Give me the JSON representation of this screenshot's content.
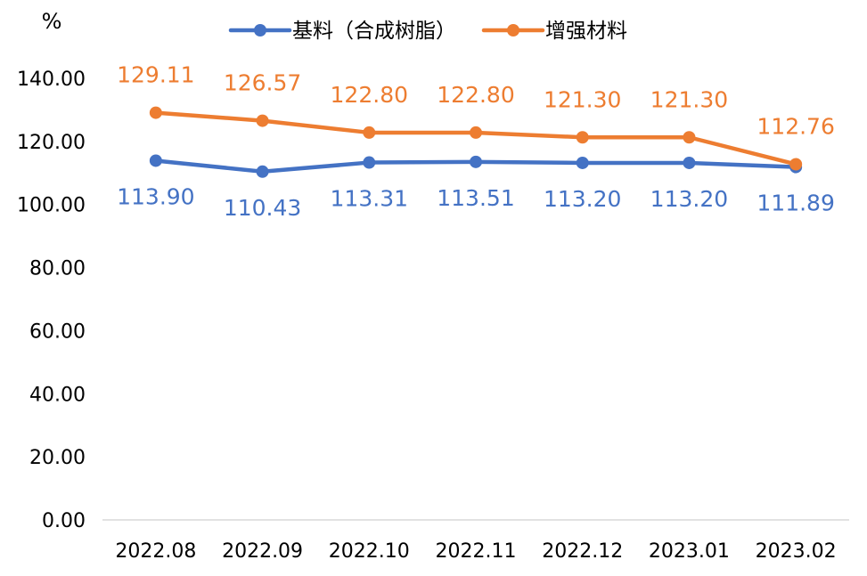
{
  "chart_data": {
    "type": "line",
    "ylabel": "%",
    "ylim": [
      0,
      140
    ],
    "y_ticks": [
      "0.00",
      "20.00",
      "40.00",
      "60.00",
      "80.00",
      "100.00",
      "120.00",
      "140.00"
    ],
    "categories": [
      "2022.08",
      "2022.09",
      "2022.10",
      "2022.11",
      "2022.12",
      "2023.01",
      "2023.02"
    ],
    "legend_position": "top-center",
    "grid": false,
    "series": [
      {
        "name": "基料（合成树脂）",
        "color": "#4472C4",
        "values": [
          113.9,
          110.43,
          113.31,
          113.51,
          113.2,
          113.2,
          111.89
        ],
        "labels": [
          "113.90",
          "110.43",
          "113.31",
          "113.51",
          "113.20",
          "113.20",
          "111.89"
        ],
        "label_position": "below"
      },
      {
        "name": "增强材料",
        "color": "#ED7D31",
        "values": [
          129.11,
          126.57,
          122.8,
          122.8,
          121.3,
          121.3,
          112.76
        ],
        "labels": [
          "129.11",
          "126.57",
          "122.80",
          "122.80",
          "121.30",
          "121.30",
          "112.76"
        ],
        "label_position": "above"
      }
    ]
  }
}
